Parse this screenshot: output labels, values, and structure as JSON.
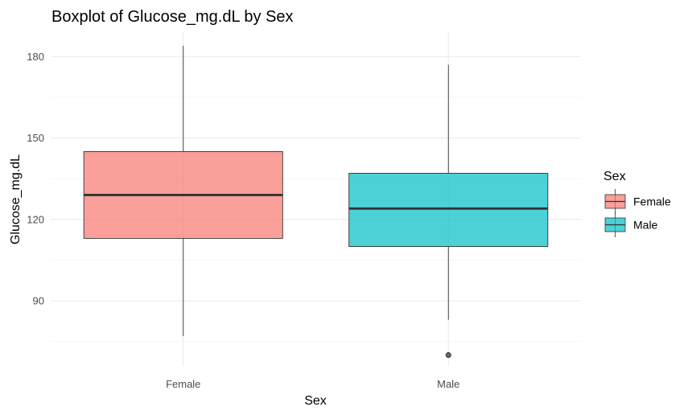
{
  "chart_data": {
    "type": "boxplot",
    "title": "Boxplot of Glucose_mg.dL by Sex",
    "xlabel": "Sex",
    "ylabel": "Glucose_mg.dL",
    "categories": [
      "Female",
      "Male"
    ],
    "ylim": [
      66,
      189
    ],
    "yticks": [
      90,
      120,
      150,
      180
    ],
    "yminor": [
      75,
      105,
      135,
      165
    ],
    "grid": true,
    "boxes": [
      {
        "name": "Female",
        "color": "#F8766D",
        "whisker_low": 77,
        "q1": 113,
        "median": 129,
        "q3": 145,
        "whisker_high": 184,
        "outliers": []
      },
      {
        "name": "Male",
        "color": "#00BFC4",
        "whisker_low": 83,
        "q1": 110,
        "median": 124,
        "q3": 137,
        "whisker_high": 177,
        "outliers": [
          70
        ]
      }
    ],
    "legend": {
      "title": "Sex",
      "position": "right",
      "entries": [
        "Female",
        "Male"
      ]
    }
  }
}
